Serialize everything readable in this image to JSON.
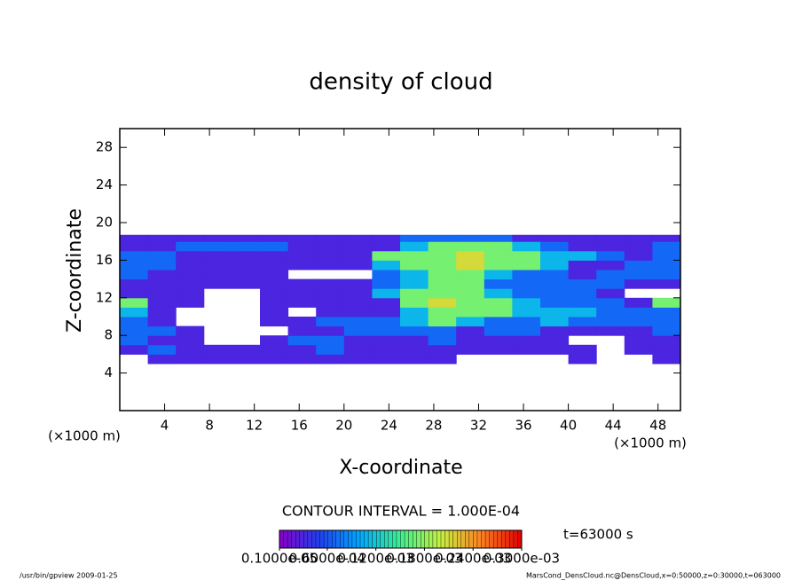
{
  "chart_data": {
    "type": "contour",
    "title": "density of cloud",
    "xlabel": "X-coordinate",
    "ylabel": "Z-coordinate",
    "xunit": "(×1000 m)",
    "yunit": "(×1000 m)",
    "contour_interval": "CONTOUR INTERVAL = 1.000E-04",
    "time_label": "t=63000 s",
    "footer_left": "/usr/bin/gpview  2009-01-25",
    "footer_right": "MarsCond_DensCloud.nc@DensCloud,x=0:50000,z=0:30000,t=063000",
    "xlim": [
      0,
      50
    ],
    "ylim": [
      0,
      30
    ],
    "xticks": [
      4,
      8,
      12,
      16,
      20,
      24,
      28,
      32,
      36,
      40,
      44,
      48
    ],
    "yticks": [
      4,
      8,
      12,
      16,
      20,
      24,
      28
    ],
    "x": [
      0,
      2.5,
      5,
      7.5,
      10,
      12.5,
      15,
      17.5,
      20,
      22.5,
      25,
      27.5,
      30,
      32.5,
      35,
      37.5,
      40,
      42.5,
      45,
      47.5,
      50
    ],
    "z": [
      5,
      6,
      7,
      8,
      9,
      10,
      11,
      12,
      13,
      14,
      15,
      16,
      17,
      18,
      18.7
    ],
    "clim": [
      1e-06,
      0.0003
    ],
    "colormap": [
      "#8800c8",
      "#2040f0",
      "#00a8ff",
      "#40f090",
      "#c8f040",
      "#ff8020",
      "#e00000"
    ],
    "colorbar_ticks": [
      {
        "value": 1e-06,
        "label": "0.1000e-05"
      },
      {
        "value": 6e-05,
        "label": "0.6000e-04"
      },
      {
        "value": 0.00012,
        "label": "0.1200e-03"
      },
      {
        "value": 0.00018,
        "label": "0.1800e-03"
      },
      {
        "value": 0.00024,
        "label": "0.2400e-03"
      },
      {
        "value": 0.0003,
        "label": "0.3000e-03"
      }
    ],
    "values": [
      [
        null,
        3e-05,
        3e-05,
        3e-05,
        3e-05,
        3e-05,
        3e-05,
        3e-05,
        3e-05,
        3e-05,
        3e-05,
        3e-05,
        null,
        null,
        null,
        null,
        3e-05,
        null,
        null,
        3e-05
      ],
      [
        3e-05,
        7e-05,
        3e-05,
        3e-05,
        3e-05,
        3e-05,
        3e-05,
        7e-05,
        3e-05,
        3e-05,
        3e-05,
        3e-05,
        3e-05,
        3e-05,
        3e-05,
        3e-05,
        3e-05,
        null,
        3e-05,
        3e-05
      ],
      [
        7e-05,
        3e-05,
        3e-05,
        null,
        null,
        3e-05,
        7e-05,
        7e-05,
        3e-05,
        3e-05,
        3e-05,
        7e-05,
        3e-05,
        3e-05,
        3e-05,
        3e-05,
        null,
        null,
        3e-05,
        3e-05
      ],
      [
        7e-05,
        7e-05,
        3e-05,
        null,
        null,
        null,
        3e-05,
        3e-05,
        7e-05,
        7e-05,
        7e-05,
        7e-05,
        3e-05,
        7e-05,
        7e-05,
        3e-05,
        3e-05,
        3e-05,
        3e-05,
        7e-05
      ],
      [
        7e-05,
        3e-05,
        null,
        null,
        null,
        3e-05,
        3e-05,
        7e-05,
        7e-05,
        7e-05,
        0.00011,
        0.00017,
        0.00011,
        7e-05,
        7e-05,
        0.00011,
        7e-05,
        7e-05,
        7e-05,
        7e-05
      ],
      [
        0.00011,
        3e-05,
        null,
        null,
        null,
        3e-05,
        null,
        3e-05,
        3e-05,
        3e-05,
        0.00011,
        0.00017,
        0.00017,
        0.00017,
        0.00011,
        0.00011,
        0.00011,
        7e-05,
        7e-05,
        7e-05
      ],
      [
        0.00017,
        3e-05,
        3e-05,
        null,
        null,
        3e-05,
        3e-05,
        3e-05,
        3e-05,
        3e-05,
        0.00017,
        0.00021,
        0.00017,
        0.00017,
        0.00011,
        7e-05,
        7e-05,
        7e-05,
        3e-05,
        0.00017
      ],
      [
        3e-05,
        3e-05,
        3e-05,
        null,
        null,
        3e-05,
        3e-05,
        3e-05,
        3e-05,
        0.00011,
        0.00017,
        0.00017,
        0.00017,
        0.00011,
        7e-05,
        7e-05,
        7e-05,
        3e-05,
        null,
        null
      ],
      [
        3e-05,
        3e-05,
        3e-05,
        3e-05,
        3e-05,
        3e-05,
        3e-05,
        3e-05,
        3e-05,
        7e-05,
        0.00011,
        0.00017,
        0.00017,
        7e-05,
        7e-05,
        7e-05,
        7e-05,
        7e-05,
        3e-05,
        3e-05
      ],
      [
        7e-05,
        3e-05,
        3e-05,
        3e-05,
        3e-05,
        3e-05,
        null,
        null,
        null,
        7e-05,
        0.00011,
        0.00017,
        0.00017,
        0.00011,
        7e-05,
        7e-05,
        3e-05,
        7e-05,
        7e-05,
        7e-05
      ],
      [
        7e-05,
        7e-05,
        3e-05,
        3e-05,
        3e-05,
        3e-05,
        3e-05,
        3e-05,
        3e-05,
        0.00011,
        0.00017,
        0.00017,
        0.00021,
        0.00017,
        0.00017,
        0.00011,
        3e-05,
        3e-05,
        7e-05,
        7e-05
      ],
      [
        7e-05,
        7e-05,
        3e-05,
        3e-05,
        3e-05,
        3e-05,
        3e-05,
        3e-05,
        3e-05,
        0.00017,
        0.00017,
        0.00017,
        0.00021,
        0.00017,
        0.00017,
        0.00011,
        0.00011,
        7e-05,
        3e-05,
        7e-05
      ],
      [
        3e-05,
        3e-05,
        7e-05,
        7e-05,
        7e-05,
        7e-05,
        3e-05,
        3e-05,
        3e-05,
        3e-05,
        0.00011,
        0.00017,
        0.00017,
        0.00017,
        0.00011,
        7e-05,
        3e-05,
        3e-05,
        3e-05,
        7e-05
      ],
      [
        3e-05,
        3e-05,
        3e-05,
        3e-05,
        3e-05,
        3e-05,
        3e-05,
        3e-05,
        3e-05,
        3e-05,
        7e-05,
        7e-05,
        7e-05,
        7e-05,
        3e-05,
        3e-05,
        3e-05,
        3e-05,
        3e-05,
        3e-05
      ]
    ]
  }
}
